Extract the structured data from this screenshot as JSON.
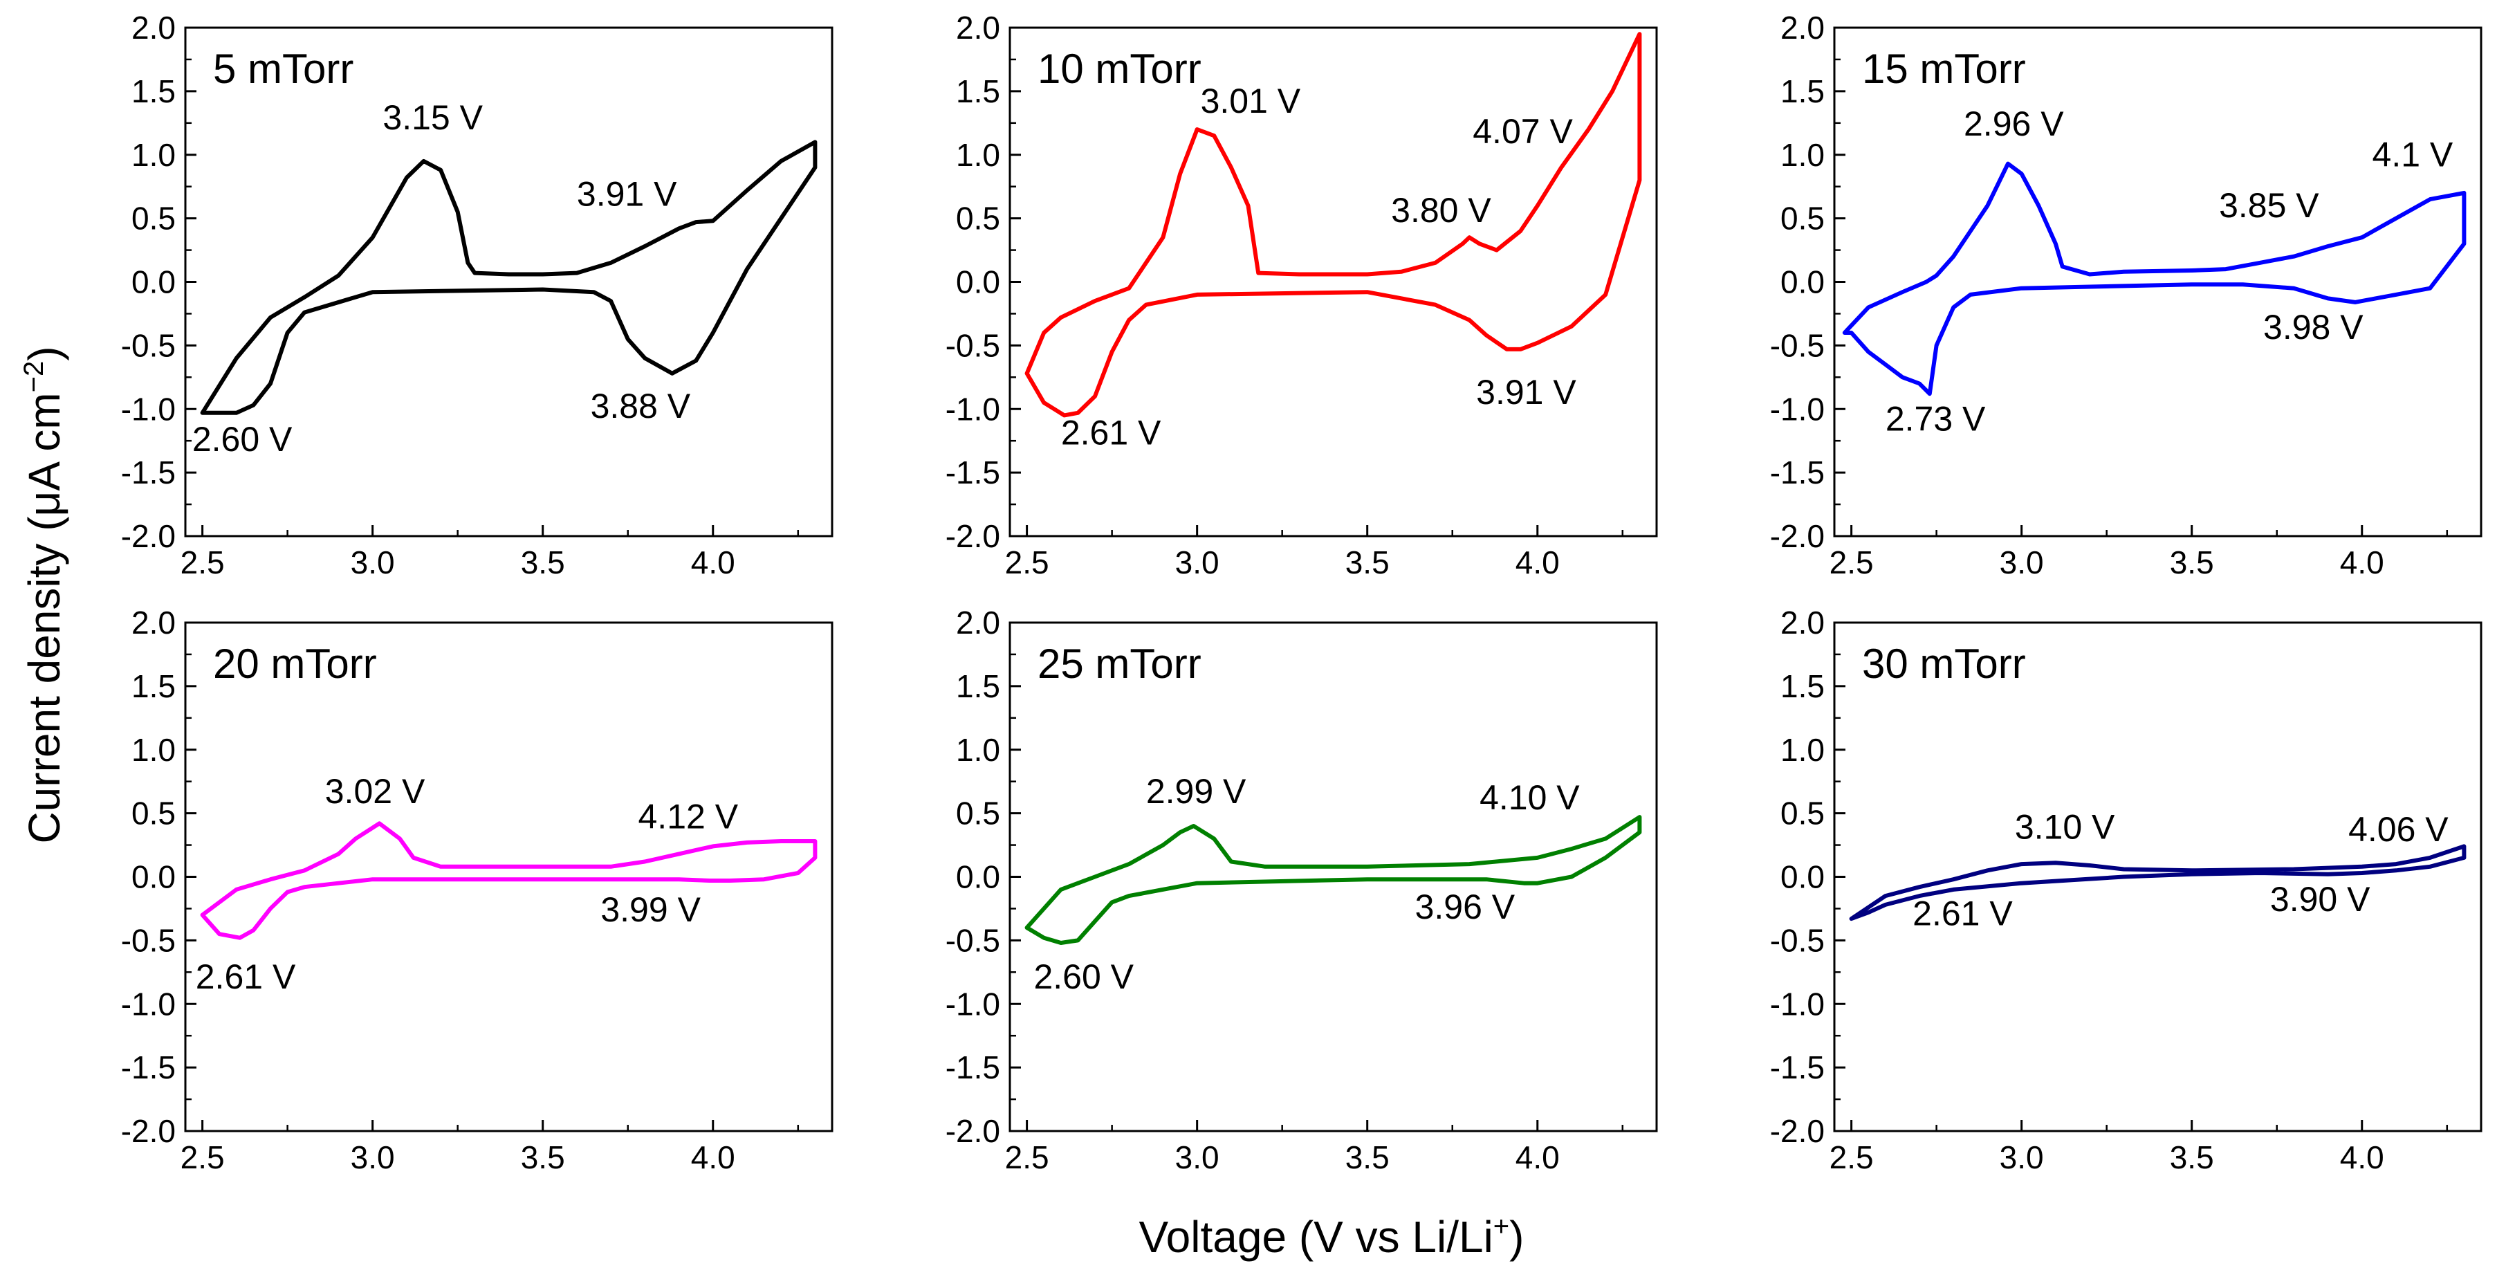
{
  "figure": {
    "ylabel_main": "Current density (",
    "ylabel_mu": "μ",
    "ylabel_unit": "A cm",
    "ylabel_exp": "−2",
    "ylabel_close": ")",
    "xlabel_main": "Voltage (V vs Li/Li",
    "xlabel_sup": "+",
    "xlabel_close": ")"
  },
  "chart_data": [
    {
      "type": "line",
      "title": "5 mTorr",
      "color": "#000000",
      "xlim": [
        2.45,
        4.35
      ],
      "ylim": [
        -2.0,
        2.0
      ],
      "xticks": [
        "2.5",
        "3.0",
        "3.5",
        "4.0"
      ],
      "yticks": [
        "2.0",
        "1.5",
        "1.0",
        "0.5",
        "0.0",
        "-0.5",
        "-1.0",
        "-1.5",
        "-2.0"
      ],
      "x": [
        2.5,
        2.6,
        2.7,
        2.8,
        2.9,
        3.0,
        3.1,
        3.15,
        3.2,
        3.25,
        3.28,
        3.3,
        3.4,
        3.5,
        3.6,
        3.7,
        3.8,
        3.9,
        3.95,
        4.0,
        4.1,
        4.2,
        4.3,
        4.3,
        4.2,
        4.1,
        4.0,
        3.95,
        3.88,
        3.8,
        3.75,
        3.7,
        3.65,
        3.5,
        3.0,
        2.8,
        2.75,
        2.7,
        2.65,
        2.6,
        2.55,
        2.5
      ],
      "y": [
        -1.03,
        -0.6,
        -0.28,
        -0.12,
        0.05,
        0.35,
        0.82,
        0.95,
        0.88,
        0.55,
        0.15,
        0.07,
        0.06,
        0.06,
        0.07,
        0.15,
        0.28,
        0.42,
        0.47,
        0.48,
        0.72,
        0.95,
        1.1,
        0.9,
        0.5,
        0.1,
        -0.4,
        -0.62,
        -0.72,
        -0.6,
        -0.45,
        -0.15,
        -0.08,
        -0.06,
        -0.08,
        -0.24,
        -0.4,
        -0.8,
        -0.97,
        -1.03,
        -1.03,
        -1.03
      ],
      "annotations": [
        {
          "text": "3.15 V",
          "x": 3.03,
          "y": 1.2
        },
        {
          "text": "3.91 V",
          "x": 3.6,
          "y": 0.6
        },
        {
          "text": "3.88 V",
          "x": 3.64,
          "y": -1.07
        },
        {
          "text": "2.60 V",
          "x": 2.47,
          "y": -1.33
        }
      ]
    },
    {
      "type": "line",
      "title": "10 mTorr",
      "color": "#ff0000",
      "xlim": [
        2.45,
        4.35
      ],
      "ylim": [
        -2.0,
        2.0
      ],
      "xticks": [
        "2.5",
        "3.0",
        "3.5",
        "4.0"
      ],
      "yticks": [
        "2.0",
        "1.5",
        "1.0",
        "0.5",
        "0.0",
        "-0.5",
        "-1.0",
        "-1.5",
        "-2.0"
      ],
      "x": [
        2.5,
        2.55,
        2.6,
        2.7,
        2.8,
        2.9,
        2.95,
        3.0,
        3.05,
        3.1,
        3.15,
        3.18,
        3.3,
        3.5,
        3.6,
        3.7,
        3.78,
        3.8,
        3.83,
        3.88,
        3.95,
        4.0,
        4.07,
        4.15,
        4.22,
        4.3,
        4.3,
        4.2,
        4.1,
        4.0,
        3.95,
        3.91,
        3.85,
        3.8,
        3.7,
        3.5,
        3.0,
        2.85,
        2.8,
        2.75,
        2.7,
        2.65,
        2.61,
        2.55,
        2.5
      ],
      "y": [
        -0.72,
        -0.4,
        -0.28,
        -0.15,
        -0.05,
        0.35,
        0.85,
        1.2,
        1.15,
        0.9,
        0.6,
        0.07,
        0.06,
        0.06,
        0.08,
        0.15,
        0.3,
        0.35,
        0.3,
        0.25,
        0.4,
        0.6,
        0.9,
        1.2,
        1.5,
        1.95,
        0.8,
        -0.1,
        -0.35,
        -0.48,
        -0.53,
        -0.53,
        -0.42,
        -0.3,
        -0.18,
        -0.08,
        -0.1,
        -0.18,
        -0.3,
        -0.55,
        -0.9,
        -1.03,
        -1.05,
        -0.95,
        -0.72
      ],
      "annotations": [
        {
          "text": "3.01 V",
          "x": 3.01,
          "y": 1.33
        },
        {
          "text": "4.07 V",
          "x": 3.81,
          "y": 1.09
        },
        {
          "text": "3.80 V",
          "x": 3.57,
          "y": 0.47
        },
        {
          "text": "3.91 V",
          "x": 3.82,
          "y": -0.96
        },
        {
          "text": "2.61 V",
          "x": 2.6,
          "y": -1.28
        }
      ]
    },
    {
      "type": "line",
      "title": "15 mTorr",
      "color": "#0000ff",
      "xlim": [
        2.45,
        4.35
      ],
      "ylim": [
        -2.0,
        2.0
      ],
      "xticks": [
        "2.5",
        "3.0",
        "3.5",
        "4.0"
      ],
      "yticks": [
        "2.0",
        "1.5",
        "1.0",
        "0.5",
        "0.0",
        "-0.5",
        "-1.0",
        "-1.5",
        "-2.0"
      ],
      "x": [
        2.48,
        2.55,
        2.65,
        2.72,
        2.75,
        2.8,
        2.85,
        2.9,
        2.96,
        3.0,
        3.05,
        3.1,
        3.12,
        3.2,
        3.3,
        3.5,
        3.6,
        3.7,
        3.8,
        3.9,
        4.0,
        4.1,
        4.2,
        4.3,
        4.3,
        4.2,
        4.1,
        4.0,
        3.98,
        3.9,
        3.8,
        3.65,
        3.5,
        3.0,
        2.85,
        2.8,
        2.75,
        2.73,
        2.7,
        2.65,
        2.6,
        2.55,
        2.5,
        2.48
      ],
      "y": [
        -0.4,
        -0.2,
        -0.08,
        0.0,
        0.05,
        0.2,
        0.4,
        0.6,
        0.93,
        0.85,
        0.6,
        0.3,
        0.12,
        0.06,
        0.08,
        0.09,
        0.1,
        0.15,
        0.2,
        0.28,
        0.35,
        0.5,
        0.65,
        0.7,
        0.3,
        -0.05,
        -0.1,
        -0.15,
        -0.16,
        -0.13,
        -0.05,
        -0.02,
        -0.02,
        -0.05,
        -0.1,
        -0.2,
        -0.5,
        -0.88,
        -0.8,
        -0.75,
        -0.65,
        -0.55,
        -0.4,
        -0.4
      ],
      "annotations": [
        {
          "text": "2.96 V",
          "x": 2.83,
          "y": 1.15
        },
        {
          "text": "4.1 V",
          "x": 4.03,
          "y": 0.91
        },
        {
          "text": "3.85 V",
          "x": 3.58,
          "y": 0.51
        },
        {
          "text": "3.98 V",
          "x": 3.71,
          "y": -0.45
        },
        {
          "text": "2.73 V",
          "x": 2.6,
          "y": -1.17
        }
      ]
    },
    {
      "type": "line",
      "title": "20 mTorr",
      "color": "#ff00ff",
      "xlim": [
        2.45,
        4.35
      ],
      "ylim": [
        -2.0,
        2.0
      ],
      "xticks": [
        "2.5",
        "3.0",
        "3.5",
        "4.0"
      ],
      "yticks": [
        "2.0",
        "1.5",
        "1.0",
        "0.5",
        "0.0",
        "-0.5",
        "-1.0",
        "-1.5",
        "-2.0"
      ],
      "x": [
        2.5,
        2.6,
        2.7,
        2.8,
        2.9,
        2.95,
        3.02,
        3.08,
        3.12,
        3.2,
        3.5,
        3.7,
        3.8,
        3.9,
        4.0,
        4.1,
        4.2,
        4.3,
        4.3,
        4.25,
        4.15,
        4.05,
        3.99,
        3.9,
        3.7,
        3.5,
        3.0,
        2.8,
        2.75,
        2.7,
        2.65,
        2.61,
        2.55,
        2.5
      ],
      "y": [
        -0.3,
        -0.1,
        -0.02,
        0.05,
        0.18,
        0.3,
        0.42,
        0.3,
        0.15,
        0.08,
        0.08,
        0.08,
        0.12,
        0.18,
        0.24,
        0.27,
        0.28,
        0.28,
        0.15,
        0.03,
        -0.02,
        -0.03,
        -0.03,
        -0.02,
        -0.02,
        -0.02,
        -0.02,
        -0.08,
        -0.12,
        -0.25,
        -0.42,
        -0.48,
        -0.45,
        -0.3
      ],
      "annotations": [
        {
          "text": "3.02 V",
          "x": 2.86,
          "y": 0.58
        },
        {
          "text": "4.12 V",
          "x": 3.78,
          "y": 0.38
        },
        {
          "text": "3.99 V",
          "x": 3.67,
          "y": -0.35
        },
        {
          "text": "2.61 V",
          "x": 2.48,
          "y": -0.88
        }
      ]
    },
    {
      "type": "line",
      "title": "25 mTorr",
      "color": "#008000",
      "xlim": [
        2.45,
        4.35
      ],
      "ylim": [
        -2.0,
        2.0
      ],
      "xticks": [
        "2.5",
        "3.0",
        "3.5",
        "4.0"
      ],
      "yticks": [
        "2.0",
        "1.5",
        "1.0",
        "0.5",
        "0.0",
        "-0.5",
        "-1.0",
        "-1.5",
        "-2.0"
      ],
      "x": [
        2.5,
        2.6,
        2.7,
        2.8,
        2.9,
        2.95,
        2.99,
        3.05,
        3.1,
        3.2,
        3.5,
        3.8,
        4.0,
        4.1,
        4.2,
        4.3,
        4.3,
        4.2,
        4.1,
        4.0,
        3.96,
        3.85,
        3.5,
        3.0,
        2.8,
        2.75,
        2.7,
        2.65,
        2.6,
        2.55,
        2.5
      ],
      "y": [
        -0.4,
        -0.1,
        0.0,
        0.1,
        0.25,
        0.35,
        0.4,
        0.3,
        0.12,
        0.08,
        0.08,
        0.1,
        0.15,
        0.22,
        0.3,
        0.47,
        0.35,
        0.15,
        0.0,
        -0.05,
        -0.05,
        -0.02,
        -0.02,
        -0.05,
        -0.15,
        -0.2,
        -0.35,
        -0.5,
        -0.52,
        -0.48,
        -0.4
      ],
      "annotations": [
        {
          "text": "2.99 V",
          "x": 2.85,
          "y": 0.58
        },
        {
          "text": "4.10 V",
          "x": 3.83,
          "y": 0.53
        },
        {
          "text": "3.96 V",
          "x": 3.64,
          "y": -0.33
        },
        {
          "text": "2.60 V",
          "x": 2.52,
          "y": -0.88
        }
      ]
    },
    {
      "type": "line",
      "title": "30 mTorr",
      "color": "#000080",
      "xlim": [
        2.45,
        4.35
      ],
      "ylim": [
        -2.0,
        2.0
      ],
      "xticks": [
        "2.5",
        "3.0",
        "3.5",
        "4.0"
      ],
      "yticks": [
        "2.0",
        "1.5",
        "1.0",
        "0.5",
        "0.0",
        "-0.5",
        "-1.0",
        "-1.5",
        "-2.0"
      ],
      "x": [
        2.5,
        2.6,
        2.7,
        2.8,
        2.9,
        3.0,
        3.1,
        3.2,
        3.3,
        3.5,
        3.8,
        4.0,
        4.1,
        4.2,
        4.3,
        4.3,
        4.2,
        4.1,
        4.0,
        3.9,
        3.7,
        3.5,
        3.3,
        3.0,
        2.8,
        2.7,
        2.6,
        2.55,
        2.5
      ],
      "y": [
        -0.33,
        -0.15,
        -0.08,
        -0.02,
        0.05,
        0.1,
        0.11,
        0.09,
        0.06,
        0.05,
        0.06,
        0.08,
        0.1,
        0.15,
        0.24,
        0.15,
        0.08,
        0.05,
        0.03,
        0.02,
        0.03,
        0.02,
        0.0,
        -0.05,
        -0.1,
        -0.15,
        -0.22,
        -0.28,
        -0.33
      ],
      "annotations": [
        {
          "text": "3.10 V",
          "x": 2.98,
          "y": 0.3
        },
        {
          "text": "4.06 V",
          "x": 3.96,
          "y": 0.28
        },
        {
          "text": "3.90 V",
          "x": 3.73,
          "y": -0.27
        },
        {
          "text": "2.61 V",
          "x": 2.68,
          "y": -0.38
        }
      ]
    }
  ]
}
